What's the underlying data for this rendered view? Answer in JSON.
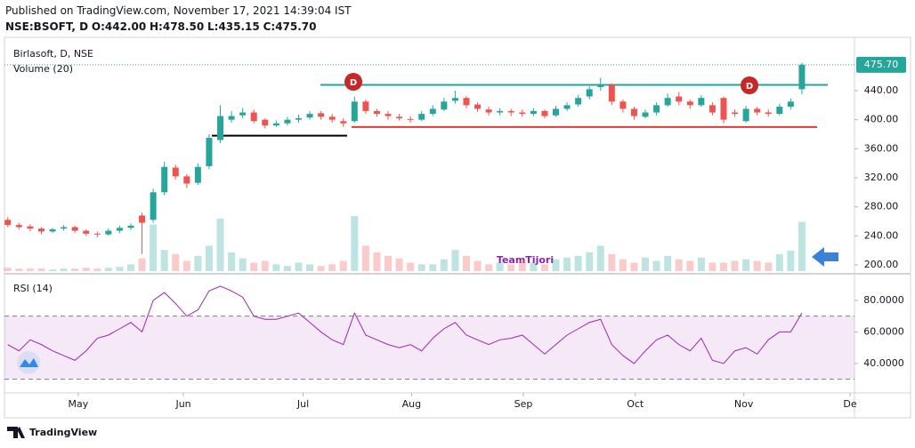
{
  "header": {
    "published": "Published on TradingView.com, November 17, 2021 14:39:04 IST",
    "symbol": "NSE:BSOFT, D",
    "ohlc": [
      "O:442.00",
      "H:478.50",
      "L:435.15",
      "C:475.70"
    ]
  },
  "chart_data": {
    "type": "candlestick",
    "title": "Birlasoft, D, NSE",
    "volume_label": "Volume (20)",
    "open": [
      262,
      255,
      253,
      250,
      246,
      250,
      252,
      247,
      243,
      242,
      247,
      251,
      268,
      262,
      300,
      334,
      322,
      313,
      336,
      372,
      400,
      406,
      410,
      400,
      392,
      395,
      400,
      403,
      409,
      404,
      398,
      398,
      425,
      412,
      408,
      404,
      401,
      400,
      408,
      414,
      426,
      430,
      421,
      414,
      410,
      412,
      410,
      408,
      412,
      406,
      415,
      421,
      432,
      445,
      448,
      425,
      415,
      404,
      410,
      420,
      432,
      425,
      420,
      420,
      430,
      410,
      398,
      415,
      410,
      408,
      418,
      442
    ],
    "high": [
      266,
      258,
      256,
      252,
      251,
      255,
      254,
      249,
      246,
      250,
      254,
      257,
      272,
      305,
      342,
      338,
      325,
      340,
      380,
      420,
      412,
      416,
      414,
      402,
      399,
      404,
      407,
      412,
      412,
      408,
      402,
      432,
      428,
      415,
      412,
      408,
      405,
      412,
      420,
      430,
      440,
      433,
      424,
      418,
      416,
      415,
      414,
      416,
      414,
      419,
      424,
      434,
      446,
      458,
      450,
      428,
      418,
      414,
      424,
      436,
      438,
      428,
      434,
      424,
      432,
      414,
      419,
      418,
      414,
      422,
      429,
      478.5
    ],
    "low": [
      252,
      249,
      246,
      242,
      244,
      247,
      244,
      240,
      238,
      240,
      244,
      248,
      215,
      258,
      296,
      318,
      306,
      310,
      332,
      368,
      396,
      402,
      395,
      388,
      390,
      392,
      396,
      400,
      400,
      396,
      390,
      396,
      408,
      404,
      400,
      399,
      396,
      398,
      405,
      412,
      422,
      416,
      411,
      406,
      406,
      405,
      404,
      405,
      402,
      404,
      412,
      418,
      428,
      440,
      420,
      410,
      400,
      402,
      406,
      418,
      420,
      415,
      418,
      406,
      395,
      404,
      396,
      406,
      404,
      406,
      414,
      435.15
    ],
    "close": [
      255,
      252,
      250,
      246,
      249,
      252,
      247,
      243,
      242,
      247,
      251,
      254,
      258,
      300,
      335,
      322,
      312,
      335,
      375,
      405,
      405,
      410,
      398,
      392,
      395,
      400,
      402,
      408,
      404,
      400,
      395,
      425,
      412,
      408,
      405,
      402,
      400,
      408,
      415,
      425,
      430,
      420,
      415,
      410,
      412,
      410,
      408,
      412,
      405,
      415,
      420,
      430,
      442,
      448,
      425,
      415,
      405,
      410,
      420,
      430,
      425,
      420,
      430,
      410,
      400,
      408,
      415,
      410,
      408,
      418,
      425,
      475.7
    ],
    "volume": [
      4,
      3,
      3,
      3,
      2,
      3,
      3,
      4,
      3,
      4,
      5,
      8,
      15,
      55,
      25,
      20,
      12,
      18,
      30,
      62,
      22,
      15,
      10,
      12,
      8,
      6,
      10,
      8,
      6,
      8,
      12,
      65,
      30,
      22,
      18,
      15,
      10,
      8,
      8,
      14,
      25,
      18,
      12,
      8,
      10,
      8,
      12,
      10,
      8,
      14,
      16,
      18,
      22,
      30,
      20,
      14,
      10,
      16,
      12,
      18,
      14,
      12,
      16,
      10,
      10,
      12,
      14,
      12,
      10,
      20,
      24,
      58
    ],
    "up_color": "#26a69a",
    "down_color": "#ef5350",
    "ylim": [
      191.4,
      513.5
    ],
    "yticks": [
      {
        "value": 200,
        "label": "200.00"
      },
      {
        "value": 240,
        "label": "240.00"
      },
      {
        "value": 280,
        "label": "280.00"
      },
      {
        "value": 320,
        "label": "320.00"
      },
      {
        "value": 360,
        "label": "360.00"
      },
      {
        "value": 400,
        "label": "400.00"
      },
      {
        "value": 440,
        "label": "440.00"
      }
    ],
    "xlim": [
      -0.3,
      75.7
    ],
    "xticks": [
      {
        "value": 6.3,
        "label": "May"
      },
      {
        "value": 15.7,
        "label": "Jun"
      },
      {
        "value": 26.4,
        "label": "Jul"
      },
      {
        "value": 36.1,
        "label": "Aug"
      },
      {
        "value": 46.1,
        "label": "Sep"
      },
      {
        "value": 56.1,
        "label": "Oct"
      },
      {
        "value": 65.8,
        "label": "Nov"
      },
      {
        "value": 75.3,
        "label": "De"
      }
    ],
    "last_price": {
      "value": 475.7,
      "label": "475.70"
    },
    "levels": [
      {
        "value": 448,
        "color": "#26a69a"
      },
      {
        "value": 390,
        "color": "#e53935"
      },
      {
        "value": 378,
        "color": "#000000"
      }
    ],
    "markers": [
      "D",
      "D"
    ],
    "watermark": "TeamTijori",
    "rsi": {
      "title": "RSI (14)",
      "color": "#9c27b0",
      "values": [
        52,
        48,
        55,
        52,
        48,
        45,
        42,
        48,
        56,
        58,
        62,
        66,
        60,
        80,
        85,
        78,
        70,
        74,
        86,
        89,
        86,
        82,
        70,
        68,
        68,
        70,
        72,
        66,
        60,
        55,
        52,
        72,
        58,
        55,
        52,
        50,
        52,
        48,
        56,
        62,
        66,
        58,
        55,
        52,
        55,
        56,
        58,
        52,
        46,
        52,
        58,
        62,
        66,
        68,
        52,
        45,
        40,
        48,
        55,
        58,
        52,
        48,
        56,
        42,
        40,
        48,
        50,
        46,
        55,
        60,
        60,
        72
      ],
      "ylim": [
        22.5,
        94.6
      ],
      "yticks": [
        {
          "value": 80,
          "label": "80.0000"
        },
        {
          "value": 60,
          "label": "60.0000"
        },
        {
          "value": 40,
          "label": "40.0000"
        }
      ],
      "band": [
        30,
        70
      ]
    }
  },
  "footer": {
    "brand": "TradingView"
  }
}
